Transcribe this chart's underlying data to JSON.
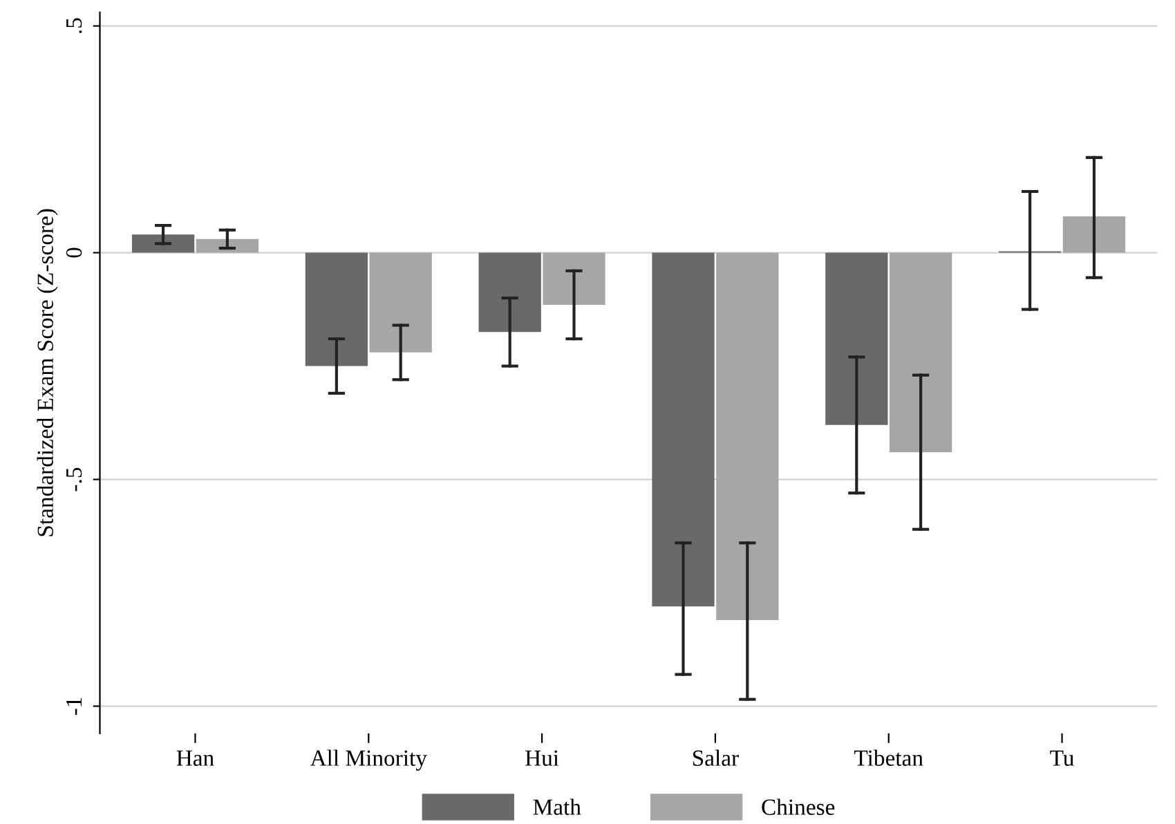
{
  "chart_data": {
    "type": "bar",
    "ylabel": "Standardized Exam Score (Z-score)",
    "categories": [
      "Han",
      "All Minority",
      "Hui",
      "Salar",
      "Tibetan",
      "Tu"
    ],
    "series": [
      {
        "name": "Math",
        "color": "#696969",
        "values": [
          0.04,
          -0.25,
          -0.175,
          -0.78,
          -0.38,
          0.003
        ],
        "errors": [
          [
            0.02,
            0.06
          ],
          [
            -0.31,
            -0.19
          ],
          [
            -0.25,
            -0.1
          ],
          [
            -0.93,
            -0.64
          ],
          [
            -0.53,
            -0.23
          ],
          [
            -0.125,
            0.135
          ]
        ]
      },
      {
        "name": "Chinese",
        "color": "#a6a6a6",
        "values": [
          0.03,
          -0.22,
          -0.115,
          -0.81,
          -0.44,
          0.08
        ],
        "errors": [
          [
            0.01,
            0.05
          ],
          [
            -0.28,
            -0.16
          ],
          [
            -0.19,
            -0.04
          ],
          [
            -0.985,
            -0.64
          ],
          [
            -0.61,
            -0.27
          ],
          [
            -0.055,
            0.21
          ]
        ]
      }
    ],
    "ylim": [
      -1.06,
      0.53
    ],
    "yticks": [
      {
        "value": 0.5,
        "label": ".5"
      },
      0,
      {
        "value": -0.5,
        "label": "-.5"
      },
      -1
    ],
    "grid": "y",
    "legend": "bottom"
  }
}
